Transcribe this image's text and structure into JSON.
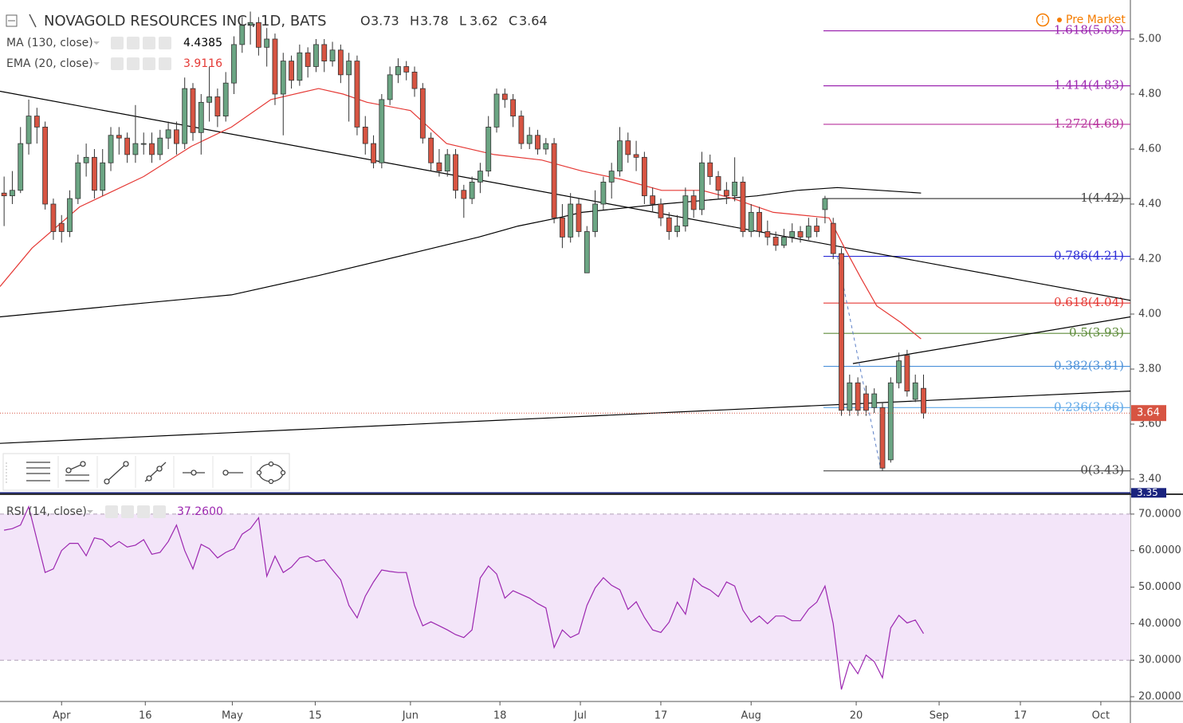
{
  "chart_data": {
    "type": "candlestick",
    "title": "NOVAGOLD RESOURCES INC., 1D, BATS",
    "ohlc_labels": [
      "O",
      "H",
      "L",
      "C"
    ],
    "ohlc": [
      3.73,
      3.78,
      3.62,
      3.64
    ],
    "status": "Pre Market",
    "up_color": "#6ba583",
    "down_color": "#d75442",
    "xlim": [
      -0.5,
      137.2
    ],
    "xticks": [
      {
        "value": 7,
        "label": "Apr"
      },
      {
        "value": 17.2,
        "label": "16"
      },
      {
        "value": 27.8,
        "label": "May"
      },
      {
        "value": 37.9,
        "label": "15"
      },
      {
        "value": 49.5,
        "label": "Jun"
      },
      {
        "value": 60.4,
        "label": "18"
      },
      {
        "value": 70.2,
        "label": "Jul"
      },
      {
        "value": 80,
        "label": "17"
      },
      {
        "value": 91,
        "label": "Aug"
      },
      {
        "value": 103.8,
        "label": "20"
      },
      {
        "value": 113.9,
        "label": "Sep"
      },
      {
        "value": 123.8,
        "label": "17"
      },
      {
        "value": 133.6,
        "label": "Oct"
      }
    ],
    "ylim": [
      3.345,
      5.142
    ],
    "yticks": [
      {
        "value": 3.4,
        "label": "3.40"
      },
      {
        "value": 3.6,
        "label": "3.60"
      },
      {
        "value": 3.8,
        "label": "3.80"
      },
      {
        "value": 4.0,
        "label": "4.00"
      },
      {
        "value": 4.2,
        "label": "4.20"
      },
      {
        "value": 4.4,
        "label": "4.40"
      },
      {
        "value": 4.6,
        "label": "4.60"
      },
      {
        "value": 4.8,
        "label": "4.80"
      },
      {
        "value": 5.0,
        "label": "5.00"
      }
    ],
    "last_price": 3.64,
    "marker_price": 3.35,
    "candles": [
      [
        4.44,
        4.5,
        4.32,
        4.43
      ],
      [
        4.43,
        4.52,
        4.4,
        4.45
      ],
      [
        4.45,
        4.68,
        4.44,
        4.62
      ],
      [
        4.62,
        4.78,
        4.58,
        4.72
      ],
      [
        4.72,
        4.75,
        4.62,
        4.68
      ],
      [
        4.68,
        4.7,
        4.38,
        4.4
      ],
      [
        4.4,
        4.42,
        4.27,
        4.3
      ],
      [
        4.33,
        4.36,
        4.26,
        4.3
      ],
      [
        4.3,
        4.45,
        4.28,
        4.42
      ],
      [
        4.42,
        4.58,
        4.4,
        4.55
      ],
      [
        4.55,
        4.62,
        4.5,
        4.57
      ],
      [
        4.57,
        4.6,
        4.42,
        4.45
      ],
      [
        4.45,
        4.6,
        4.43,
        4.55
      ],
      [
        4.55,
        4.68,
        4.52,
        4.65
      ],
      [
        4.65,
        4.68,
        4.58,
        4.64
      ],
      [
        4.64,
        4.66,
        4.55,
        4.58
      ],
      [
        4.58,
        4.76,
        4.55,
        4.62
      ],
      [
        4.62,
        4.66,
        4.58,
        4.62
      ],
      [
        4.62,
        4.66,
        4.55,
        4.58
      ],
      [
        4.58,
        4.67,
        4.56,
        4.64
      ],
      [
        4.64,
        4.7,
        4.6,
        4.67
      ],
      [
        4.67,
        4.7,
        4.58,
        4.62
      ],
      [
        4.62,
        4.86,
        4.6,
        4.82
      ],
      [
        4.82,
        4.84,
        4.63,
        4.66
      ],
      [
        4.66,
        4.8,
        4.58,
        4.77
      ],
      [
        4.77,
        4.9,
        4.7,
        4.79
      ],
      [
        4.79,
        4.82,
        4.68,
        4.72
      ],
      [
        4.72,
        4.88,
        4.7,
        4.84
      ],
      [
        4.84,
        5.01,
        4.8,
        4.98
      ],
      [
        4.98,
        5.08,
        4.95,
        5.05
      ],
      [
        5.05,
        5.1,
        4.98,
        5.06
      ],
      [
        5.06,
        5.08,
        4.94,
        4.97
      ],
      [
        4.97,
        5.04,
        4.9,
        5.0
      ],
      [
        5.0,
        5.02,
        4.76,
        4.8
      ],
      [
        4.8,
        4.95,
        4.65,
        4.92
      ],
      [
        4.92,
        4.94,
        4.82,
        4.85
      ],
      [
        4.85,
        4.98,
        4.83,
        4.95
      ],
      [
        4.95,
        4.97,
        4.86,
        4.9
      ],
      [
        4.9,
        5.0,
        4.88,
        4.98
      ],
      [
        4.98,
        5.0,
        4.88,
        4.92
      ],
      [
        4.92,
        4.99,
        4.9,
        4.96
      ],
      [
        4.96,
        4.98,
        4.84,
        4.87
      ],
      [
        4.87,
        4.95,
        4.7,
        4.92
      ],
      [
        4.92,
        4.94,
        4.65,
        4.68
      ],
      [
        4.68,
        4.72,
        4.58,
        4.62
      ],
      [
        4.62,
        4.65,
        4.53,
        4.55
      ],
      [
        4.55,
        4.8,
        4.53,
        4.78
      ],
      [
        4.78,
        4.9,
        4.76,
        4.87
      ],
      [
        4.87,
        4.93,
        4.84,
        4.9
      ],
      [
        4.9,
        4.92,
        4.85,
        4.88
      ],
      [
        4.88,
        4.9,
        4.79,
        4.82
      ],
      [
        4.82,
        4.84,
        4.62,
        4.64
      ],
      [
        4.64,
        4.66,
        4.52,
        4.55
      ],
      [
        4.55,
        4.6,
        4.5,
        4.52
      ],
      [
        4.52,
        4.6,
        4.5,
        4.58
      ],
      [
        4.58,
        4.6,
        4.42,
        4.45
      ],
      [
        4.45,
        4.47,
        4.35,
        4.42
      ],
      [
        4.42,
        4.5,
        4.4,
        4.48
      ],
      [
        4.48,
        4.55,
        4.44,
        4.52
      ],
      [
        4.52,
        4.72,
        4.5,
        4.68
      ],
      [
        4.68,
        4.82,
        4.66,
        4.8
      ],
      [
        4.8,
        4.82,
        4.75,
        4.78
      ],
      [
        4.78,
        4.8,
        4.68,
        4.72
      ],
      [
        4.72,
        4.74,
        4.6,
        4.62
      ],
      [
        4.62,
        4.68,
        4.6,
        4.65
      ],
      [
        4.65,
        4.67,
        4.58,
        4.6
      ],
      [
        4.6,
        4.64,
        4.58,
        4.62
      ],
      [
        4.62,
        4.64,
        4.33,
        4.35
      ],
      [
        4.35,
        4.4,
        4.24,
        4.28
      ],
      [
        4.28,
        4.44,
        4.26,
        4.4
      ],
      [
        4.4,
        4.42,
        4.28,
        4.3
      ],
      [
        4.15,
        4.32,
        4.15,
        4.3
      ],
      [
        4.3,
        4.45,
        4.28,
        4.4
      ],
      [
        4.4,
        4.5,
        4.38,
        4.48
      ],
      [
        4.48,
        4.55,
        4.42,
        4.52
      ],
      [
        4.52,
        4.68,
        4.5,
        4.63
      ],
      [
        4.63,
        4.66,
        4.55,
        4.58
      ],
      [
        4.58,
        4.63,
        4.52,
        4.57
      ],
      [
        4.57,
        4.59,
        4.4,
        4.43
      ],
      [
        4.43,
        4.46,
        4.37,
        4.4
      ],
      [
        4.4,
        4.42,
        4.32,
        4.35
      ],
      [
        4.35,
        4.37,
        4.27,
        4.3
      ],
      [
        4.3,
        4.36,
        4.28,
        4.32
      ],
      [
        4.32,
        4.46,
        4.3,
        4.43
      ],
      [
        4.43,
        4.45,
        4.35,
        4.38
      ],
      [
        4.38,
        4.59,
        4.36,
        4.55
      ],
      [
        4.55,
        4.58,
        4.47,
        4.5
      ],
      [
        4.5,
        4.52,
        4.42,
        4.45
      ],
      [
        4.45,
        4.48,
        4.4,
        4.43
      ],
      [
        4.43,
        4.57,
        4.41,
        4.48
      ],
      [
        4.48,
        4.5,
        4.28,
        4.3
      ],
      [
        4.3,
        4.4,
        4.28,
        4.37
      ],
      [
        4.37,
        4.39,
        4.28,
        4.3
      ],
      [
        4.3,
        4.34,
        4.25,
        4.28
      ],
      [
        4.28,
        4.3,
        4.23,
        4.25
      ],
      [
        4.25,
        4.31,
        4.24,
        4.28
      ],
      [
        4.28,
        4.33,
        4.26,
        4.3
      ],
      [
        4.3,
        4.32,
        4.26,
        4.28
      ],
      [
        4.28,
        4.35,
        4.27,
        4.32
      ],
      [
        4.32,
        4.35,
        4.28,
        4.3
      ],
      [
        4.38,
        4.43,
        4.33,
        4.42
      ],
      [
        4.33,
        4.35,
        4.2,
        4.22
      ],
      [
        4.22,
        4.24,
        3.63,
        3.65
      ],
      [
        3.65,
        3.78,
        3.63,
        3.75
      ],
      [
        3.75,
        3.77,
        3.63,
        3.65
      ],
      [
        3.71,
        3.74,
        3.63,
        3.65
      ],
      [
        3.66,
        3.73,
        3.64,
        3.71
      ],
      [
        3.66,
        3.68,
        3.43,
        3.44
      ],
      [
        3.47,
        3.77,
        3.46,
        3.75
      ],
      [
        3.75,
        3.86,
        3.73,
        3.83
      ],
      [
        3.85,
        3.87,
        3.7,
        3.72
      ],
      [
        3.69,
        3.78,
        3.68,
        3.75
      ],
      [
        3.73,
        3.78,
        3.62,
        3.64
      ]
    ],
    "indicators": [
      {
        "name": "MA (130, close)",
        "value": 4.4385,
        "color": "#000000",
        "x": [
          -0.5,
          17,
          27.7,
          38.3,
          49.5,
          57.8,
          62.6,
          67.5,
          70.4,
          80.1,
          91.7,
          96.6,
          101.5,
          111.7
        ],
        "values": [
          3.99,
          4.04,
          4.07,
          4.14,
          4.22,
          4.28,
          4.32,
          4.35,
          4.37,
          4.4,
          4.43,
          4.45,
          4.46,
          4.44
        ]
      },
      {
        "name": "EMA (20, close)",
        "value": 3.9116,
        "color": "#e53935",
        "x": [
          -0.5,
          3.4,
          9.2,
          17,
          22.8,
          27.7,
          32.5,
          38.3,
          41.3,
          44.2,
          49.5,
          53.9,
          59.7,
          65.5,
          70.4,
          75.2,
          80.1,
          85,
          88.8,
          93.7,
          100.5,
          102.4,
          104.4,
          106.3,
          109.2,
          111.7
        ],
        "values": [
          4.1,
          4.24,
          4.39,
          4.5,
          4.61,
          4.68,
          4.78,
          4.82,
          4.8,
          4.77,
          4.74,
          4.62,
          4.58,
          4.56,
          4.52,
          4.49,
          4.45,
          4.45,
          4.42,
          4.37,
          4.35,
          4.24,
          4.13,
          4.03,
          3.97,
          3.91
        ]
      }
    ],
    "trendlines": [
      {
        "color": "#000000",
        "x": [
          -0.5,
          137.2
        ],
        "values": [
          4.81,
          4.05
        ]
      },
      {
        "color": "#000000",
        "x": [
          103.4,
          137.2
        ],
        "values": [
          3.82,
          3.99
        ]
      },
      {
        "color": "#000000",
        "x": [
          -0.5,
          137.2
        ],
        "values": [
          3.53,
          3.72
        ]
      }
    ],
    "dashed_line": {
      "color": "#5b7fc7",
      "x": [
        101.5,
        106.7
      ],
      "values": [
        4.21,
        3.45
      ]
    },
    "fib": {
      "levels": [
        5.03,
        4.83,
        4.69,
        4.42,
        4.21,
        4.04,
        3.93,
        3.81,
        3.66,
        3.43
      ],
      "level_labels": [
        "1.618(5.03)",
        "1.414(4.83)",
        "1.272(4.69)",
        "1(4.42)",
        "0.786(4.21)",
        "0.618(4.04)",
        "0.5(3.93)",
        "0.382(3.81)",
        "0.236(3.66)",
        "0(3.43)"
      ],
      "colors": [
        "#9c27b0",
        "#9c27b0",
        "#b8329c",
        "#444444",
        "#2b2bd6",
        "#e53935",
        "#5e8c3a",
        "#4a90d9",
        "#5fa8e8",
        "#444444"
      ]
    },
    "rsi": {
      "name": "RSI (14, close)",
      "value": 37.26,
      "value_label": "37.2600",
      "color": "#9c27b0",
      "ylim": [
        18.7,
        75.0
      ],
      "yticks": [
        {
          "value": 20,
          "label": "20.0000"
        },
        {
          "value": 30,
          "label": "30.0000"
        },
        {
          "value": 40,
          "label": "40.0000"
        },
        {
          "value": 50,
          "label": "50.0000"
        },
        {
          "value": 60,
          "label": "60.0000"
        },
        {
          "value": 70,
          "label": "70.0000"
        }
      ],
      "band": [
        30,
        70
      ],
      "values": [
        65.6,
        66,
        67,
        72,
        63,
        54,
        55,
        60,
        62,
        62,
        58.6,
        63.5,
        63,
        61,
        62.5,
        61,
        61.5,
        63,
        59,
        59.5,
        62.5,
        67,
        60,
        55,
        61.7,
        60.5,
        58,
        59.5,
        60.5,
        64.5,
        66,
        69,
        53,
        58.5,
        54,
        55.5,
        58,
        58.5,
        57,
        57.5,
        54.7,
        52,
        45,
        41.6,
        47.5,
        51.4,
        54.7,
        54.3,
        54,
        54,
        45,
        39.4,
        40.5,
        39.4,
        38.3,
        37,
        36.2,
        38.3,
        52.5,
        55.8,
        53.6,
        47,
        49,
        48,
        47,
        45.5,
        44.3,
        33.5,
        38.3,
        36.2,
        37.3,
        45,
        49.8,
        52.6,
        50.5,
        49.3,
        43.9,
        46,
        41.7,
        38.3,
        37.6,
        40.4,
        45.9,
        42.6,
        52.4,
        50.3,
        49.2,
        47.4,
        51.4,
        50.3,
        43.7,
        40.4,
        42.1,
        40,
        42.1,
        42.1,
        40.8,
        40.8,
        44,
        45.9,
        50.3,
        40,
        22,
        29.6,
        26.3,
        31.4,
        29.6,
        25.2,
        38.8,
        42.3,
        40.2,
        41,
        37.3
      ]
    }
  }
}
